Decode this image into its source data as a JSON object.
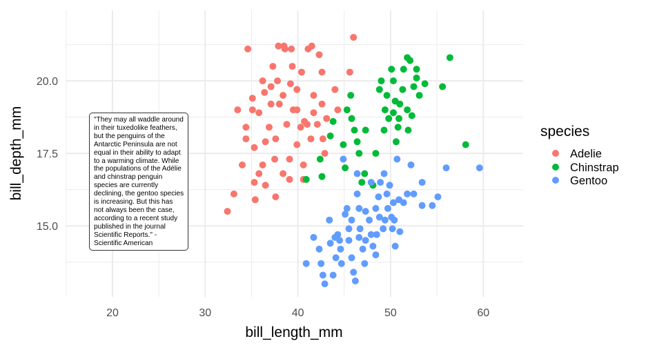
{
  "chart_data": {
    "type": "scatter",
    "title": "",
    "xlabel": "bill_length_mm",
    "ylabel": "bill_depth_mm",
    "xlim": [
      14.94,
      64.3
    ],
    "ylim": [
      12.55,
      22.43
    ],
    "x_ticks": [
      {
        "value": 20,
        "label": "20"
      },
      {
        "value": 30,
        "label": "30"
      },
      {
        "value": 40,
        "label": "40"
      },
      {
        "value": 50,
        "label": "50"
      },
      {
        "value": 60,
        "label": "60"
      }
    ],
    "y_ticks": [
      {
        "value": 15,
        "label": "15.0"
      },
      {
        "value": 17.5,
        "label": "17.5"
      },
      {
        "value": 20,
        "label": "20.0"
      }
    ],
    "grid": true,
    "legend": {
      "title": "species",
      "placement": "right"
    },
    "annotation": "\"They may all waddle around in their tuxedolike feathers, but the penguins of the Antarctic Peninsula are not equal in their ability to adapt to a warming climate. While the populations of the Adélie and chinstrap penguin species are currently declining, the gentoo species is increasing. But this has not always been the case, according to a recent study published in the journal Scientific Reports.\" - Scientific American",
    "series": [
      {
        "name": "Adelie",
        "color": "#F8766D",
        "points": [
          [
            32.4,
            15.5
          ],
          [
            33.1,
            16.1
          ],
          [
            33.5,
            19.0
          ],
          [
            34.6,
            21.1
          ],
          [
            34.0,
            17.1
          ],
          [
            34.4,
            18.4
          ],
          [
            34.4,
            18.0
          ],
          [
            35.1,
            19.4
          ],
          [
            35.1,
            19.0
          ],
          [
            35.3,
            17.7
          ],
          [
            35.3,
            16.5
          ],
          [
            35.4,
            15.9
          ],
          [
            35.8,
            16.8
          ],
          [
            36.2,
            20.0
          ],
          [
            36.4,
            19.6
          ],
          [
            36.5,
            17.9
          ],
          [
            37.1,
            19.8
          ],
          [
            37.3,
            20.5
          ],
          [
            37.6,
            16.0
          ],
          [
            37.8,
            20.0
          ],
          [
            37.9,
            21.2
          ],
          [
            38.5,
            21.2
          ],
          [
            38.6,
            21.1
          ],
          [
            39.2,
            19.9
          ],
          [
            39.3,
            21.1
          ],
          [
            39.4,
            20.5
          ],
          [
            39.9,
            19.0
          ],
          [
            40.4,
            20.3
          ],
          [
            40.7,
            18.6
          ],
          [
            41.1,
            21.1
          ],
          [
            41.5,
            21.2
          ],
          [
            41.7,
            19.5
          ],
          [
            42.3,
            20.9
          ],
          [
            42.6,
            20.3
          ],
          [
            42.6,
            19.2
          ],
          [
            42.7,
            18.0
          ],
          [
            43.1,
            18.7
          ],
          [
            44.0,
            19.7
          ],
          [
            44.3,
            19.0
          ],
          [
            45.6,
            20.3
          ],
          [
            46.0,
            21.5
          ],
          [
            40.6,
            17.1
          ],
          [
            39.9,
            17.8
          ],
          [
            39.1,
            17.3
          ],
          [
            38.4,
            16.8
          ],
          [
            37.6,
            18.0
          ],
          [
            36.9,
            18.4
          ],
          [
            36.2,
            17.1
          ],
          [
            35.8,
            18.9
          ],
          [
            38.0,
            19.2
          ],
          [
            38.8,
            18.5
          ],
          [
            39.5,
            19.0
          ],
          [
            40.3,
            18.4
          ],
          [
            41.0,
            18.5
          ],
          [
            41.4,
            18.0
          ],
          [
            42.1,
            18.5
          ],
          [
            42.9,
            17.5
          ],
          [
            37.5,
            17.3
          ],
          [
            36.5,
            16.4
          ],
          [
            39.1,
            16.6
          ],
          [
            40.6,
            16.6
          ],
          [
            41.7,
            18.9
          ],
          [
            37.1,
            19.2
          ],
          [
            38.4,
            19.5
          ],
          [
            39.9,
            19.7
          ]
        ]
      },
      {
        "name": "Chinstrap",
        "color": "#00BA38",
        "points": [
          [
            40.9,
            16.6
          ],
          [
            42.4,
            17.3
          ],
          [
            42.6,
            16.7
          ],
          [
            43.5,
            18.1
          ],
          [
            43.8,
            18.6
          ],
          [
            44.9,
            17.8
          ],
          [
            45.1,
            17.0
          ],
          [
            45.3,
            19.0
          ],
          [
            45.7,
            19.5
          ],
          [
            45.8,
            18.7
          ],
          [
            46.1,
            18.3
          ],
          [
            46.4,
            17.9
          ],
          [
            46.6,
            17.5
          ],
          [
            46.9,
            16.5
          ],
          [
            47.2,
            16.8
          ],
          [
            47.3,
            18.3
          ],
          [
            48.1,
            16.4
          ],
          [
            48.4,
            17.5
          ],
          [
            48.8,
            19.7
          ],
          [
            49.0,
            20.0
          ],
          [
            49.3,
            18.3
          ],
          [
            49.4,
            19.0
          ],
          [
            49.8,
            18.7
          ],
          [
            50.1,
            20.4
          ],
          [
            50.3,
            20.0
          ],
          [
            50.5,
            19.3
          ],
          [
            50.6,
            17.9
          ],
          [
            50.8,
            18.4
          ],
          [
            51.0,
            19.2
          ],
          [
            51.3,
            19.7
          ],
          [
            51.4,
            20.4
          ],
          [
            51.8,
            20.8
          ],
          [
            51.9,
            18.3
          ],
          [
            52.1,
            20.7
          ],
          [
            52.3,
            18.8
          ],
          [
            52.5,
            19.8
          ],
          [
            52.8,
            20.1
          ],
          [
            52.8,
            20.4
          ],
          [
            53.1,
            19.5
          ],
          [
            53.7,
            19.9
          ],
          [
            55.6,
            19.8
          ],
          [
            56.4,
            20.8
          ],
          [
            58.1,
            17.8
          ],
          [
            50.3,
            18.9
          ],
          [
            49.6,
            19.5
          ],
          [
            50.9,
            18.7
          ],
          [
            51.8,
            19.0
          ]
        ]
      },
      {
        "name": "Gentoo",
        "color": "#619CFF",
        "points": [
          [
            40.9,
            13.7
          ],
          [
            41.7,
            14.6
          ],
          [
            42.3,
            14.2
          ],
          [
            42.5,
            13.7
          ],
          [
            42.7,
            13.3
          ],
          [
            42.9,
            13.0
          ],
          [
            43.4,
            15.2
          ],
          [
            43.5,
            14.4
          ],
          [
            43.8,
            13.3
          ],
          [
            44.1,
            13.9
          ],
          [
            44.3,
            14.7
          ],
          [
            44.5,
            14.5
          ],
          [
            44.6,
            14.2
          ],
          [
            44.7,
            13.7
          ],
          [
            44.9,
            17.3
          ],
          [
            45.1,
            15.4
          ],
          [
            45.3,
            15.6
          ],
          [
            45.5,
            14.9
          ],
          [
            45.8,
            13.9
          ],
          [
            46.0,
            13.4
          ],
          [
            46.2,
            13.1
          ],
          [
            46.4,
            16.8
          ],
          [
            46.4,
            16.1
          ],
          [
            46.6,
            15.6
          ],
          [
            46.7,
            14.9
          ],
          [
            47.0,
            14.2
          ],
          [
            47.2,
            13.7
          ],
          [
            47.3,
            14.5
          ],
          [
            47.7,
            15.2
          ],
          [
            47.9,
            14.7
          ],
          [
            48.1,
            14.3
          ],
          [
            48.4,
            15.6
          ],
          [
            48.4,
            14.0
          ],
          [
            48.7,
            16.0
          ],
          [
            48.8,
            15.3
          ],
          [
            49.2,
            14.9
          ],
          [
            49.3,
            16.8
          ],
          [
            49.4,
            15.2
          ],
          [
            49.6,
            16.1
          ],
          [
            49.7,
            15.6
          ],
          [
            49.9,
            16.4
          ],
          [
            50.1,
            15.3
          ],
          [
            50.2,
            14.9
          ],
          [
            50.4,
            15.2
          ],
          [
            50.5,
            14.3
          ],
          [
            50.7,
            17.3
          ],
          [
            50.9,
            15.9
          ],
          [
            51.0,
            14.8
          ],
          [
            51.4,
            15.8
          ],
          [
            51.8,
            16.1
          ],
          [
            52.2,
            17.1
          ],
          [
            52.5,
            16.1
          ],
          [
            53.4,
            16.5
          ],
          [
            53.4,
            15.7
          ],
          [
            54.5,
            15.7
          ],
          [
            55.1,
            16.0
          ],
          [
            56.0,
            17.0
          ],
          [
            59.6,
            17.0
          ],
          [
            47.9,
            16.5
          ],
          [
            48.9,
            16.5
          ],
          [
            50.3,
            15.8
          ],
          [
            45.8,
            15.2
          ],
          [
            46.6,
            14.6
          ],
          [
            45.5,
            14.5
          ],
          [
            44.0,
            14.6
          ],
          [
            47.3,
            15.5
          ],
          [
            48.5,
            14.7
          ]
        ]
      }
    ]
  }
}
